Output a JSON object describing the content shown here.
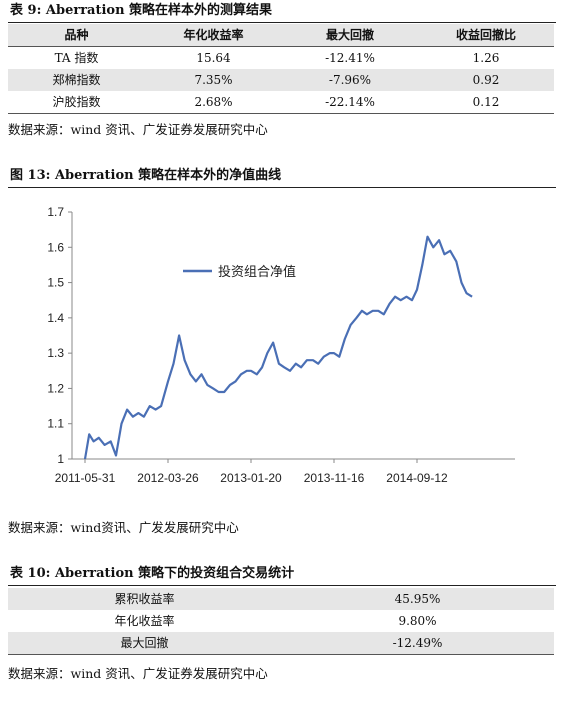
{
  "table9": {
    "title": "表 9: Aberration 策略在样本外的测算结果",
    "headers": [
      "品种",
      "年化收益率",
      "最大回撤",
      "收益回撤比"
    ],
    "rows": [
      [
        "TA 指数",
        "15.64",
        "-12.41%",
        "1.26"
      ],
      [
        "郑棉指数",
        "7.35%",
        "-7.96%",
        "0.92"
      ],
      [
        "沪胶指数",
        "2.68%",
        "-22.14%",
        "0.12"
      ]
    ],
    "source": "数据来源：wind 资讯、广发证券发展研究中心"
  },
  "figure13": {
    "title": "图 13: Aberration 策略在样本外的净值曲线",
    "source": "数据来源：wind资讯、广发发展研究中心"
  },
  "chart_data": {
    "type": "line",
    "title": "",
    "xlabel": "",
    "ylabel": "",
    "ylim": [
      1,
      1.7
    ],
    "yticks": [
      "1",
      "1.1",
      "1.2",
      "1.3",
      "1.4",
      "1.5",
      "1.6",
      "1.7"
    ],
    "xticks": [
      "2011-05-31",
      "2012-03-26",
      "2013-01-20",
      "2013-11-16",
      "2014-09-12"
    ],
    "legend": "top-left",
    "color": "#4a6fb5",
    "series": [
      {
        "name": "投资组合净值",
        "x": [
          "2011-05-31",
          "2011-06-15",
          "2011-07-01",
          "2011-07-20",
          "2011-08-10",
          "2011-09-01",
          "2011-09-20",
          "2011-10-10",
          "2011-10-30",
          "2011-11-20",
          "2011-12-10",
          "2011-12-30",
          "2012-01-20",
          "2012-02-10",
          "2012-03-01",
          "2012-03-26",
          "2012-04-15",
          "2012-05-05",
          "2012-05-25",
          "2012-06-15",
          "2012-07-05",
          "2012-07-25",
          "2012-08-15",
          "2012-09-05",
          "2012-09-25",
          "2012-10-15",
          "2012-11-05",
          "2012-11-25",
          "2012-12-15",
          "2013-01-05",
          "2013-01-20",
          "2013-02-10",
          "2013-03-01",
          "2013-03-20",
          "2013-04-10",
          "2013-05-01",
          "2013-05-20",
          "2013-06-10",
          "2013-07-01",
          "2013-07-20",
          "2013-08-10",
          "2013-09-01",
          "2013-09-20",
          "2013-10-10",
          "2013-11-01",
          "2013-11-16",
          "2013-12-05",
          "2013-12-25",
          "2014-01-15",
          "2014-02-05",
          "2014-02-25",
          "2014-03-15",
          "2014-04-05",
          "2014-04-25",
          "2014-05-15",
          "2014-06-05",
          "2014-06-25",
          "2014-07-15",
          "2014-08-05",
          "2014-08-25",
          "2014-09-12",
          "2014-10-01",
          "2014-10-20",
          "2014-11-10",
          "2014-12-01",
          "2014-12-20",
          "2015-01-10",
          "2015-02-01",
          "2015-02-20",
          "2015-03-10",
          "2015-03-30"
        ],
        "values": [
          1.0,
          1.07,
          1.05,
          1.06,
          1.04,
          1.05,
          1.01,
          1.1,
          1.14,
          1.12,
          1.13,
          1.12,
          1.15,
          1.14,
          1.15,
          1.22,
          1.27,
          1.35,
          1.28,
          1.24,
          1.22,
          1.24,
          1.21,
          1.2,
          1.19,
          1.19,
          1.21,
          1.22,
          1.24,
          1.25,
          1.25,
          1.24,
          1.26,
          1.3,
          1.33,
          1.27,
          1.26,
          1.25,
          1.27,
          1.26,
          1.28,
          1.28,
          1.27,
          1.29,
          1.3,
          1.3,
          1.29,
          1.34,
          1.38,
          1.4,
          1.42,
          1.41,
          1.42,
          1.42,
          1.41,
          1.44,
          1.46,
          1.45,
          1.46,
          1.45,
          1.48,
          1.55,
          1.63,
          1.6,
          1.62,
          1.58,
          1.59,
          1.56,
          1.5,
          1.47,
          1.46
        ]
      }
    ]
  },
  "table10": {
    "title": "表 10: Aberration 策略下的投资组合交易统计",
    "rows": [
      [
        "累积收益率",
        "45.95%"
      ],
      [
        "年化收益率",
        "9.80%"
      ],
      [
        "最大回撤",
        "-12.49%"
      ]
    ],
    "source": "数据来源：wind 资讯、广发证券发展研究中心"
  }
}
